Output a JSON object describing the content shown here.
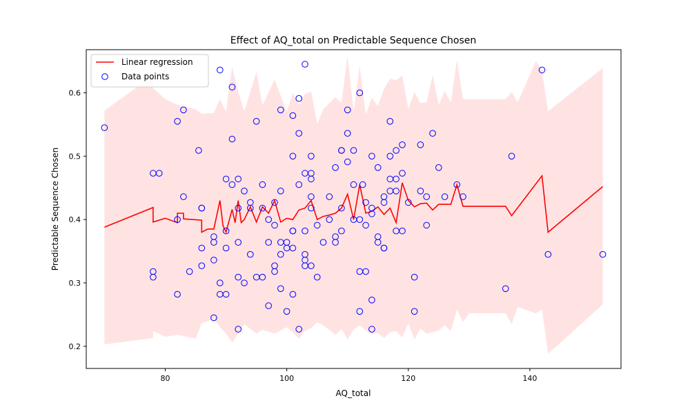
{
  "chart_data": {
    "type": "scatter",
    "title": "Effect of AQ_total on Predictable Sequence Chosen",
    "xlabel": "AQ_total",
    "ylabel": "Predictable Sequence Chosen",
    "xlim": [
      67,
      155
    ],
    "ylim": [
      0.165,
      0.668
    ],
    "xticks": [
      80,
      100,
      120,
      140
    ],
    "yticks": [
      0.2,
      0.3,
      0.4,
      0.5,
      0.6
    ],
    "ytick_labels": [
      "0.2",
      "0.3",
      "0.4",
      "0.5",
      "0.6"
    ],
    "legend_position": "top-left",
    "legend": [
      {
        "name": "Linear regression",
        "kind": "line",
        "color": "#ff0000"
      },
      {
        "name": "Data points",
        "kind": "marker",
        "color": "#0000ff"
      }
    ],
    "series": [
      {
        "name": "Linear regression",
        "kind": "line",
        "color": "#ff0000",
        "x": [
          70,
          78,
          78,
          80,
          82,
          82,
          83,
          83,
          86,
          86,
          87,
          88,
          89,
          89.5,
          90,
          91,
          91.5,
          92,
          92.5,
          93,
          94,
          95,
          96,
          97,
          98,
          99,
          100,
          101,
          102,
          103,
          104,
          105,
          106,
          107,
          108,
          109,
          110,
          111,
          112,
          113,
          114,
          115,
          116,
          117,
          118,
          119,
          120,
          121,
          122,
          123,
          124,
          125,
          126,
          127,
          128,
          129,
          130,
          136,
          137,
          142,
          143,
          152
        ],
        "y": [
          0.388,
          0.419,
          0.396,
          0.402,
          0.395,
          0.41,
          0.41,
          0.401,
          0.399,
          0.38,
          0.385,
          0.385,
          0.43,
          0.39,
          0.38,
          0.416,
          0.395,
          0.43,
          0.395,
          0.4,
          0.42,
          0.396,
          0.42,
          0.41,
          0.43,
          0.396,
          0.402,
          0.4,
          0.415,
          0.418,
          0.43,
          0.4,
          0.405,
          0.407,
          0.41,
          0.418,
          0.44,
          0.4,
          0.455,
          0.41,
          0.413,
          0.42,
          0.408,
          0.418,
          0.395,
          0.458,
          0.43,
          0.42,
          0.425,
          0.426,
          0.415,
          0.424,
          0.424,
          0.424,
          0.455,
          0.421,
          0.421,
          0.421,
          0.406,
          0.469,
          0.38,
          0.452
        ]
      },
      {
        "name": "Confidence band",
        "kind": "band",
        "color": "#ffcccc",
        "x": [
          70,
          78,
          78,
          80,
          82,
          85,
          86,
          88,
          89,
          90,
          91,
          92,
          93,
          95,
          96,
          98,
          100,
          101,
          102,
          103,
          104,
          105,
          106,
          108,
          109,
          110,
          111,
          112,
          113,
          114,
          115,
          116,
          117,
          118,
          119,
          120,
          121,
          122,
          123,
          124,
          125,
          126,
          127,
          128,
          129,
          130,
          136,
          137,
          138,
          141,
          142,
          143,
          152
        ],
        "lower": [
          0.203,
          0.213,
          0.224,
          0.215,
          0.218,
          0.212,
          0.236,
          0.243,
          0.23,
          0.22,
          0.206,
          0.22,
          0.235,
          0.22,
          0.226,
          0.22,
          0.23,
          0.222,
          0.212,
          0.224,
          0.229,
          0.238,
          0.233,
          0.218,
          0.227,
          0.211,
          0.226,
          0.233,
          0.225,
          0.219,
          0.221,
          0.213,
          0.222,
          0.224,
          0.214,
          0.236,
          0.211,
          0.228,
          0.22,
          0.222,
          0.225,
          0.233,
          0.224,
          0.258,
          0.238,
          0.252,
          0.252,
          0.235,
          0.262,
          0.252,
          0.258,
          0.188,
          0.266
        ],
        "upper": [
          0.572,
          0.627,
          0.607,
          0.59,
          0.581,
          0.574,
          0.567,
          0.568,
          0.59,
          0.57,
          0.641,
          0.602,
          0.571,
          0.633,
          0.58,
          0.621,
          0.57,
          0.6,
          0.581,
          0.598,
          0.602,
          0.551,
          0.574,
          0.593,
          0.584,
          0.658,
          0.57,
          0.643,
          0.566,
          0.592,
          0.579,
          0.606,
          0.622,
          0.62,
          0.627,
          0.574,
          0.601,
          0.584,
          0.585,
          0.628,
          0.581,
          0.603,
          0.585,
          0.652,
          0.59,
          0.59,
          0.59,
          0.601,
          0.585,
          0.65,
          0.635,
          0.571,
          0.639
        ]
      },
      {
        "name": "Data points",
        "kind": "scatter",
        "color": "#0000ff",
        "points": [
          [
            70,
            0.545
          ],
          [
            78,
            0.473
          ],
          [
            79,
            0.473
          ],
          [
            78,
            0.318
          ],
          [
            78,
            0.309
          ],
          [
            82,
            0.555
          ],
          [
            83,
            0.573
          ],
          [
            83,
            0.436
          ],
          [
            82,
            0.4
          ],
          [
            82,
            0.282
          ],
          [
            84,
            0.318
          ],
          [
            85.5,
            0.509
          ],
          [
            86,
            0.418
          ],
          [
            86,
            0.418
          ],
          [
            86,
            0.355
          ],
          [
            86,
            0.327
          ],
          [
            88,
            0.373
          ],
          [
            88,
            0.364
          ],
          [
            88,
            0.336
          ],
          [
            88,
            0.245
          ],
          [
            89,
            0.636
          ],
          [
            89,
            0.3
          ],
          [
            89,
            0.282
          ],
          [
            90,
            0.282
          ],
          [
            90,
            0.464
          ],
          [
            90,
            0.382
          ],
          [
            90,
            0.355
          ],
          [
            91,
            0.609
          ],
          [
            91,
            0.527
          ],
          [
            91,
            0.455
          ],
          [
            92,
            0.464
          ],
          [
            92,
            0.418
          ],
          [
            92,
            0.364
          ],
          [
            92,
            0.309
          ],
          [
            92,
            0.227
          ],
          [
            93,
            0.445
          ],
          [
            93,
            0.3
          ],
          [
            94,
            0.427
          ],
          [
            94,
            0.418
          ],
          [
            94,
            0.345
          ],
          [
            95,
            0.555
          ],
          [
            95,
            0.309
          ],
          [
            96,
            0.455
          ],
          [
            96,
            0.418
          ],
          [
            96,
            0.309
          ],
          [
            97,
            0.4
          ],
          [
            97,
            0.364
          ],
          [
            97,
            0.264
          ],
          [
            98,
            0.427
          ],
          [
            98,
            0.391
          ],
          [
            98,
            0.327
          ],
          [
            98,
            0.318
          ],
          [
            99,
            0.573
          ],
          [
            99,
            0.445
          ],
          [
            99,
            0.364
          ],
          [
            99,
            0.345
          ],
          [
            99,
            0.291
          ],
          [
            100,
            0.364
          ],
          [
            100,
            0.355
          ],
          [
            100,
            0.255
          ],
          [
            101,
            0.564
          ],
          [
            101,
            0.5
          ],
          [
            101,
            0.382
          ],
          [
            101,
            0.382
          ],
          [
            101,
            0.355
          ],
          [
            101,
            0.282
          ],
          [
            102,
            0.591
          ],
          [
            102,
            0.536
          ],
          [
            102,
            0.455
          ],
          [
            102,
            0.227
          ],
          [
            103,
            0.645
          ],
          [
            103,
            0.473
          ],
          [
            103,
            0.382
          ],
          [
            103,
            0.345
          ],
          [
            103,
            0.336
          ],
          [
            103,
            0.327
          ],
          [
            104,
            0.5
          ],
          [
            104,
            0.473
          ],
          [
            104,
            0.464
          ],
          [
            104,
            0.436
          ],
          [
            104,
            0.418
          ],
          [
            104,
            0.327
          ],
          [
            105,
            0.391
          ],
          [
            105,
            0.309
          ],
          [
            106,
            0.364
          ],
          [
            107,
            0.436
          ],
          [
            107,
            0.4
          ],
          [
            108,
            0.482
          ],
          [
            108,
            0.373
          ],
          [
            108,
            0.364
          ],
          [
            109,
            0.509
          ],
          [
            109,
            0.509
          ],
          [
            109,
            0.418
          ],
          [
            109,
            0.382
          ],
          [
            110,
            0.573
          ],
          [
            110,
            0.536
          ],
          [
            110,
            0.491
          ],
          [
            111,
            0.509
          ],
          [
            111,
            0.455
          ],
          [
            111,
            0.4
          ],
          [
            112,
            0.6
          ],
          [
            112,
            0.4
          ],
          [
            112,
            0.318
          ],
          [
            112,
            0.255
          ],
          [
            112.5,
            0.455
          ],
          [
            113,
            0.427
          ],
          [
            113,
            0.391
          ],
          [
            113,
            0.318
          ],
          [
            114,
            0.5
          ],
          [
            114,
            0.418
          ],
          [
            114,
            0.409
          ],
          [
            114,
            0.273
          ],
          [
            114,
            0.227
          ],
          [
            115,
            0.482
          ],
          [
            115,
            0.373
          ],
          [
            115,
            0.364
          ],
          [
            116,
            0.436
          ],
          [
            116,
            0.427
          ],
          [
            116,
            0.355
          ],
          [
            116,
            0.355
          ],
          [
            117,
            0.555
          ],
          [
            117,
            0.5
          ],
          [
            117,
            0.464
          ],
          [
            117,
            0.445
          ],
          [
            118,
            0.509
          ],
          [
            118,
            0.464
          ],
          [
            118,
            0.445
          ],
          [
            118,
            0.382
          ],
          [
            119,
            0.518
          ],
          [
            119,
            0.473
          ],
          [
            119,
            0.382
          ],
          [
            120,
            0.427
          ],
          [
            121,
            0.309
          ],
          [
            121,
            0.255
          ],
          [
            122,
            0.518
          ],
          [
            122,
            0.445
          ],
          [
            123,
            0.436
          ],
          [
            123,
            0.391
          ],
          [
            124,
            0.536
          ],
          [
            125,
            0.482
          ],
          [
            126,
            0.436
          ],
          [
            128,
            0.455
          ],
          [
            129,
            0.436
          ],
          [
            136,
            0.291
          ],
          [
            137,
            0.5
          ],
          [
            142,
            0.636
          ],
          [
            143,
            0.345
          ],
          [
            152,
            0.345
          ]
        ]
      }
    ]
  }
}
